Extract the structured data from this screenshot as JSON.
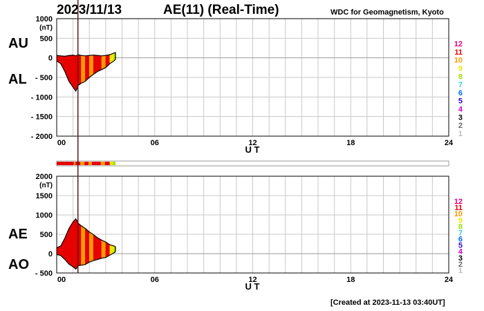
{
  "header": {
    "date": "2023/11/13",
    "title": "AE(11) (Real-Time)",
    "source": "WDC for Geomagnetism, Kyoto",
    "created": "[Created at 2023-11-13 03:40UT]"
  },
  "legend_levels": [
    "12",
    "11",
    "10",
    "9",
    "8",
    "7",
    "6",
    "5",
    "4",
    "3",
    "2",
    "1"
  ],
  "legend_colors": [
    "#e6007e",
    "#e60000",
    "#ff9900",
    "#f2e600",
    "#99e600",
    "#33cccc",
    "#0066ff",
    "#3300cc",
    "#cc00cc",
    "#000000",
    "#666666",
    "#bbbbbb"
  ],
  "chart_data": [
    {
      "type": "area",
      "name": "AU/AL",
      "label_upper": "AU",
      "label_lower": "AL",
      "ylabel": "(nT)",
      "xlabel": "U T",
      "x_ticks": [
        "00",
        "06",
        "12",
        "18",
        "24"
      ],
      "y_ticks": [
        1000,
        500,
        0,
        -500,
        -1000,
        -1500,
        -2000
      ],
      "y_tick_labels": [
        "1000",
        "500",
        "0",
        "- 500",
        "- 1000",
        "- 1500",
        "- 2000"
      ],
      "xlim": [
        0,
        24
      ],
      "ylim": [
        -2000,
        1000
      ],
      "x": [
        0,
        0.25,
        0.5,
        0.75,
        1.0,
        1.17,
        1.33,
        1.5,
        1.75,
        2.0,
        2.25,
        2.5,
        2.75,
        3.0,
        3.25,
        3.5,
        3.6
      ],
      "series": [
        {
          "name": "AU",
          "values": [
            60,
            50,
            40,
            60,
            70,
            50,
            80,
            60,
            50,
            60,
            70,
            60,
            50,
            60,
            80,
            120,
            140
          ]
        },
        {
          "name": "AL",
          "values": [
            -80,
            -150,
            -350,
            -600,
            -750,
            -850,
            -700,
            -650,
            -600,
            -500,
            -420,
            -350,
            -300,
            -250,
            -150,
            -80,
            -40
          ]
        }
      ]
    },
    {
      "type": "area",
      "name": "AE/AO",
      "label_upper": "AE",
      "label_lower": "AO",
      "ylabel": "(nT)",
      "xlabel": "U T",
      "x_ticks": [
        "00",
        "06",
        "12",
        "18",
        "24"
      ],
      "y_ticks": [
        2000,
        1500,
        1000,
        500,
        0,
        -500
      ],
      "y_tick_labels": [
        "2000",
        "1500",
        "1000",
        "500",
        "0",
        "- 500"
      ],
      "xlim": [
        0,
        24
      ],
      "ylim": [
        -500,
        2000
      ],
      "x": [
        0,
        0.25,
        0.5,
        0.75,
        1.0,
        1.17,
        1.33,
        1.5,
        1.75,
        2.0,
        2.25,
        2.5,
        2.75,
        3.0,
        3.25,
        3.5,
        3.6
      ],
      "series": [
        {
          "name": "AE",
          "values": [
            150,
            200,
            400,
            650,
            820,
            900,
            780,
            720,
            650,
            560,
            490,
            410,
            350,
            300,
            230,
            200,
            180
          ]
        },
        {
          "name": "AO",
          "values": [
            -20,
            -50,
            -150,
            -270,
            -340,
            -400,
            -310,
            -300,
            -280,
            -220,
            -180,
            -150,
            -120,
            -100,
            -40,
            20,
            50
          ]
        }
      ]
    }
  ],
  "activity_bar": {
    "x": [
      0,
      0.5,
      0.8,
      1.05,
      1.15,
      1.45,
      1.7,
      1.95,
      2.15,
      2.45,
      2.7,
      2.95,
      3.25,
      3.45,
      3.6
    ],
    "level": [
      11,
      11,
      11,
      10,
      11,
      10,
      11,
      10,
      11,
      11,
      10,
      11,
      9,
      8,
      8
    ]
  },
  "time_cursor_ut": 1.3
}
